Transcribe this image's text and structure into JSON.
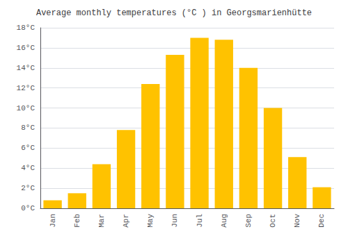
{
  "chart_data": {
    "type": "bar",
    "title": "Average monthly temperatures (°C ) in Georgsmarienhütte",
    "categories": [
      "Jan",
      "Feb",
      "Mar",
      "Apr",
      "May",
      "Jun",
      "Jul",
      "Aug",
      "Sep",
      "Oct",
      "Nov",
      "Dec"
    ],
    "values": [
      0.8,
      1.5,
      4.4,
      7.8,
      12.4,
      15.3,
      17.0,
      16.8,
      14.0,
      10.0,
      5.1,
      2.1
    ],
    "color": "#FFC200",
    "ylim": [
      0,
      18
    ],
    "yticks": [
      {
        "value": 0,
        "label": "0°C"
      },
      {
        "value": 2,
        "label": "2°C"
      },
      {
        "value": 4,
        "label": "4°C"
      },
      {
        "value": 6,
        "label": "6°C"
      },
      {
        "value": 8,
        "label": "8°C"
      },
      {
        "value": 10,
        "label": "10°C"
      },
      {
        "value": 12,
        "label": "12°C"
      },
      {
        "value": 14,
        "label": "14°C"
      },
      {
        "value": 16,
        "label": "16°C"
      },
      {
        "value": 18,
        "label": "18°C"
      }
    ],
    "grid": true
  }
}
